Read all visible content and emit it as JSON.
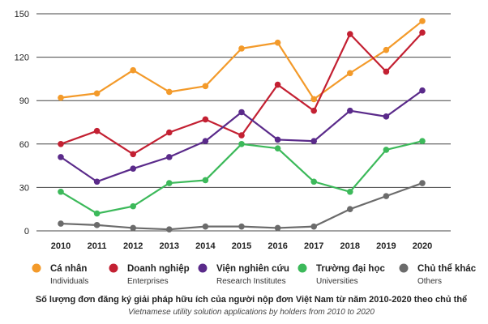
{
  "colors": {
    "ca_nhan": "#f39a2a",
    "doanh_nghiep": "#c32032",
    "vien": "#5a2a8a",
    "truong": "#3cb95a",
    "khac": "#6b6b6b",
    "grid": "#444444"
  },
  "chart_data": {
    "type": "line",
    "title": "Số lượng đơn đăng ký giải pháp hữu ích của người nộp đơn Việt Nam từ năm 2010-2020 theo chủ thể",
    "subtitle": "Vietnamese utility solution applications by holders from 2010 to 2020",
    "xlabel": "",
    "ylabel": "",
    "ylim": [
      0,
      150
    ],
    "yticks": [
      "0",
      "30",
      "60",
      "90",
      "120",
      "150"
    ],
    "categories": [
      "2010",
      "2011",
      "2012",
      "2013",
      "2014",
      "2015",
      "2016",
      "2017",
      "2018",
      "2019",
      "2020"
    ],
    "grid": true,
    "legend_position": "bottom",
    "series": [
      {
        "name": "Cá nhân",
        "name_en": "Individuals",
        "color_key": "ca_nhan",
        "values": [
          92,
          95,
          111,
          96,
          100,
          126,
          130,
          91,
          109,
          125,
          145
        ]
      },
      {
        "name": "Doanh nghiệp",
        "name_en": "Enterprises",
        "color_key": "doanh_nghiep",
        "values": [
          60,
          69,
          53,
          68,
          77,
          66,
          101,
          83,
          136,
          110,
          137
        ]
      },
      {
        "name": "Viện nghiên cứu",
        "name_en": "Research Institutes",
        "color_key": "vien",
        "values": [
          51,
          34,
          43,
          51,
          62,
          82,
          63,
          62,
          83,
          79,
          97
        ]
      },
      {
        "name": "Trường đại học",
        "name_en": "Universities",
        "color_key": "truong",
        "values": [
          27,
          12,
          17,
          33,
          35,
          60,
          57,
          34,
          27,
          56,
          62
        ]
      },
      {
        "name": "Chủ thể khác",
        "name_en": "Others",
        "color_key": "khac",
        "values": [
          5,
          4,
          2,
          1,
          3,
          3,
          2,
          3,
          15,
          24,
          33
        ]
      }
    ]
  }
}
